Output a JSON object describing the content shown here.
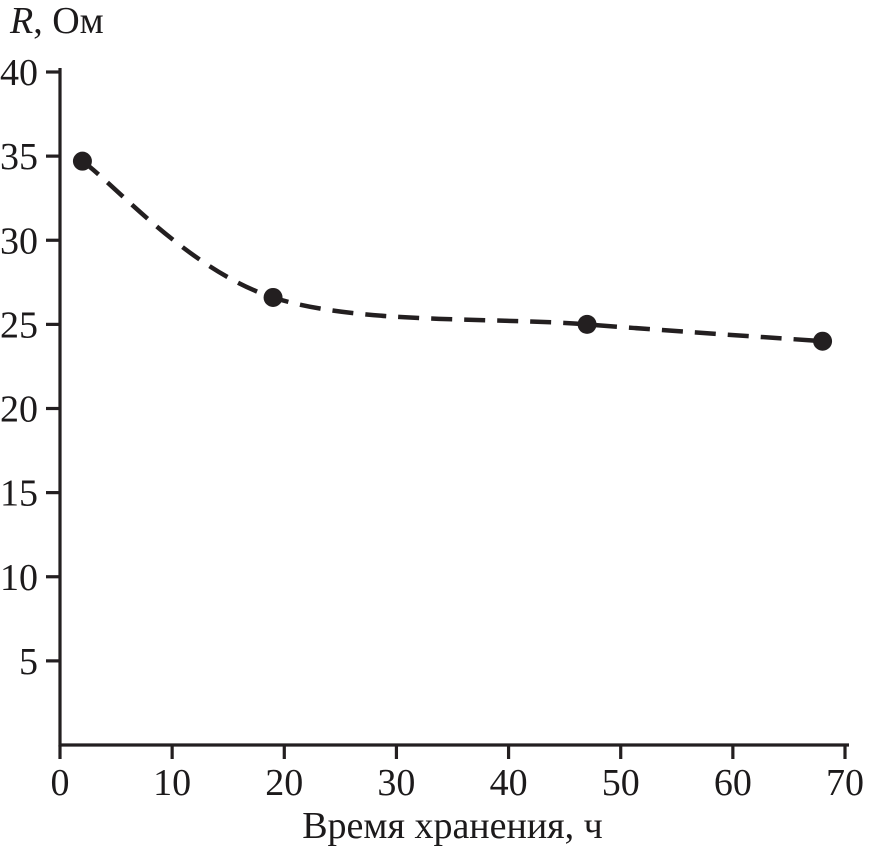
{
  "chart_data": {
    "type": "line",
    "title": "",
    "ylabel": "R, Ом",
    "ylabel_var": "R",
    "ylabel_rest": ", Ом",
    "xlabel": "Время хранения, ч",
    "x": [
      2,
      19,
      47,
      68
    ],
    "y": [
      34.7,
      26.6,
      25.0,
      24.0
    ],
    "xlim": [
      0,
      70
    ],
    "ylim": [
      0,
      40
    ],
    "xticks": [
      0,
      10,
      20,
      30,
      40,
      50,
      60,
      70
    ],
    "yticks": [
      5,
      10,
      15,
      20,
      25,
      30,
      35,
      40
    ],
    "line_style": "dashed",
    "marker": "filled-circle",
    "color": "#231f20",
    "grid": false,
    "legend_position": "none"
  }
}
